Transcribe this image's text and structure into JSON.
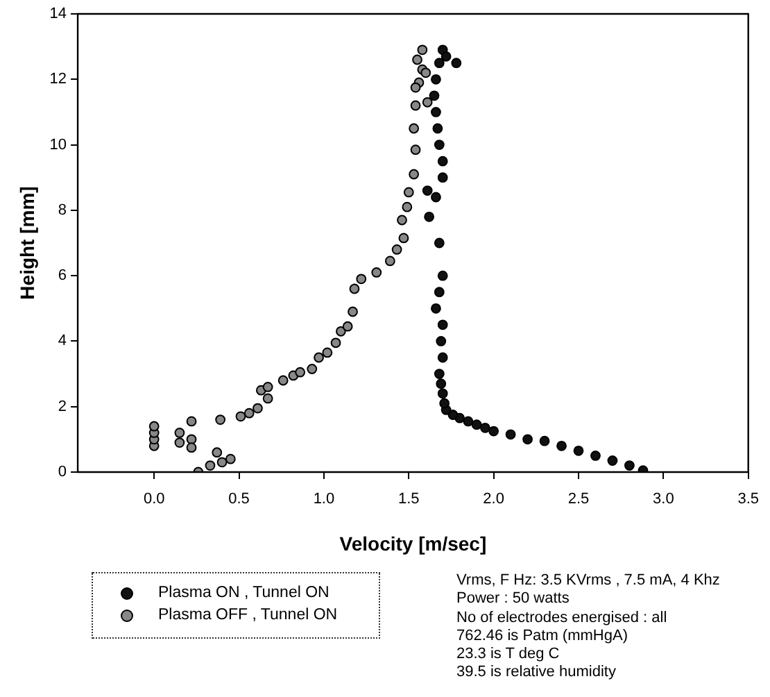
{
  "chart_data": {
    "type": "scatter",
    "xlabel": "Velocity [m/sec]",
    "ylabel": "Height [mm]",
    "xlim": [
      -0.45,
      3.5
    ],
    "xticks": [
      {
        "value": 0,
        "label": "0.0"
      },
      {
        "value": 0.5,
        "label": "0.5"
      },
      {
        "value": 1,
        "label": "1.0"
      },
      {
        "value": 1.5,
        "label": "1.5"
      },
      {
        "value": 2,
        "label": "2.0"
      },
      {
        "value": 2.5,
        "label": "2.5"
      },
      {
        "value": 3,
        "label": "3.0"
      },
      {
        "value": 3.5,
        "label": "3.5"
      }
    ],
    "ylim": [
      0,
      14
    ],
    "yticks": [
      0,
      2,
      4,
      6,
      8,
      10,
      12,
      14
    ],
    "grid": false,
    "legend": "bottom left",
    "marker": "circle",
    "series": [
      {
        "name": "Plasma ON , Tunnel ON",
        "color": "#111111",
        "x": [
          2.88,
          2.8,
          2.7,
          2.6,
          2.5,
          2.4,
          2.3,
          2.2,
          2.1,
          2.0,
          1.95,
          1.9,
          1.85,
          1.8,
          1.76,
          1.72,
          1.71,
          1.7,
          1.69,
          1.68,
          1.7,
          1.69,
          1.7,
          1.66,
          1.68,
          1.7,
          1.68,
          1.62,
          1.66,
          1.61,
          1.7,
          1.7,
          1.68,
          1.67,
          1.66,
          1.65,
          1.66,
          1.68,
          1.7,
          1.72,
          1.78
        ],
        "values": [
          0.05,
          0.2,
          0.35,
          0.5,
          0.65,
          0.8,
          0.95,
          1.0,
          1.15,
          1.25,
          1.35,
          1.45,
          1.55,
          1.65,
          1.75,
          1.9,
          2.1,
          2.4,
          2.7,
          3.0,
          3.5,
          4.0,
          4.5,
          5.0,
          5.5,
          6.0,
          7.0,
          7.8,
          8.4,
          8.6,
          9.0,
          9.5,
          10.0,
          10.5,
          11.0,
          11.5,
          12.0,
          12.5,
          12.9,
          12.7,
          12.5
        ]
      },
      {
        "name": "Plasma OFF , Tunnel ON",
        "color": "#888888",
        "x": [
          0,
          0,
          0,
          0,
          0.15,
          0.15,
          0.22,
          0.22,
          0.22,
          0.26,
          0.33,
          0.37,
          0.4,
          0.45,
          0.39,
          0.51,
          0.56,
          0.61,
          0.67,
          0.63,
          0.67,
          0.76,
          0.82,
          0.86,
          0.93,
          0.97,
          1.02,
          1.07,
          1.1,
          1.14,
          1.17,
          1.18,
          1.22,
          1.31,
          1.39,
          1.43,
          1.47,
          1.46,
          1.49,
          1.5,
          1.53,
          1.54,
          1.53,
          1.54,
          1.56,
          1.55,
          1.58,
          1.58,
          1.54,
          1.61,
          1.6
        ],
        "values": [
          0.8,
          1.0,
          1.2,
          1.4,
          1.2,
          0.9,
          1.55,
          1.0,
          0.75,
          0,
          0.2,
          0.6,
          0.3,
          0.4,
          1.6,
          1.7,
          1.8,
          1.95,
          2.25,
          2.5,
          2.6,
          2.8,
          2.95,
          3.05,
          3.15,
          3.5,
          3.65,
          3.95,
          4.3,
          4.45,
          4.9,
          5.6,
          5.9,
          6.1,
          6.45,
          6.8,
          7.15,
          7.7,
          8.1,
          8.55,
          9.1,
          9.85,
          10.5,
          11.2,
          11.9,
          12.6,
          12.9,
          12.3,
          11.75,
          11.3,
          12.2
        ]
      }
    ],
    "annotations": [
      "Vrms, F Hz: 3.5 KVrms , 7.5 mA, 4 Khz",
      "Power : 50 watts",
      "No of electrodes energised : all",
      "762.46 is Patm (mmHgA)",
      "23.3 is T deg C",
      "39.5 is relative humidity"
    ]
  }
}
